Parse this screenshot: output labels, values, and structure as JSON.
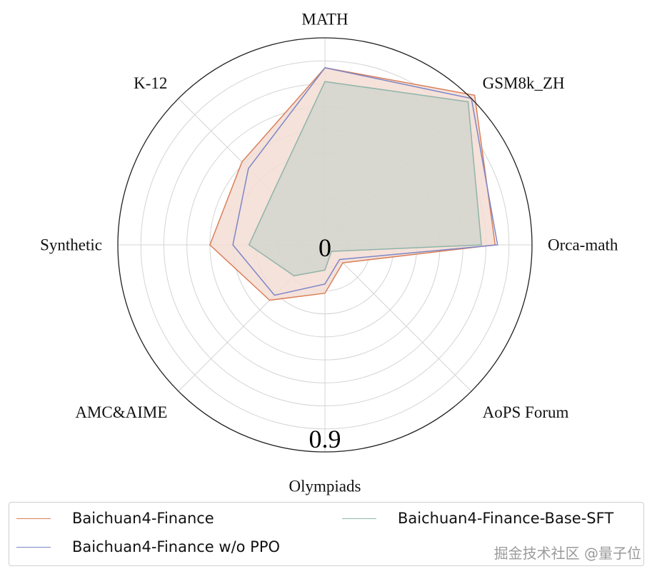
{
  "chart_data": {
    "type": "radar",
    "axes": [
      "MATH",
      "GSM8k_ZH",
      "Orca-math",
      "AoPS Forum",
      "Olympiads",
      "AMC&AIME",
      "Synthetic",
      "K-12"
    ],
    "radial_range": [
      0,
      0.9
    ],
    "radial_tick_labels": [
      "0",
      "0.9"
    ],
    "grid": true,
    "legend_position": "bottom",
    "series": [
      {
        "name": "Baichuan4-Finance",
        "color": "#d9805a",
        "fill": "#f3ddd3",
        "values": [
          0.77,
          0.92,
          0.74,
          0.11,
          0.21,
          0.34,
          0.5,
          0.51
        ]
      },
      {
        "name": "Baichuan4-Finance w/o PPO",
        "color": "#7d86c7",
        "fill": "none",
        "values": [
          0.77,
          0.9,
          0.75,
          0.09,
          0.17,
          0.31,
          0.4,
          0.47
        ]
      },
      {
        "name": "Baichuan4-Finance-Base-SFT",
        "color": "#8fb5a9",
        "fill": "#cdd3cc",
        "values": [
          0.71,
          0.88,
          0.68,
          0.04,
          0.11,
          0.19,
          0.33,
          0.32
        ]
      }
    ]
  },
  "watermark": "掘金技术社区 @量子位"
}
